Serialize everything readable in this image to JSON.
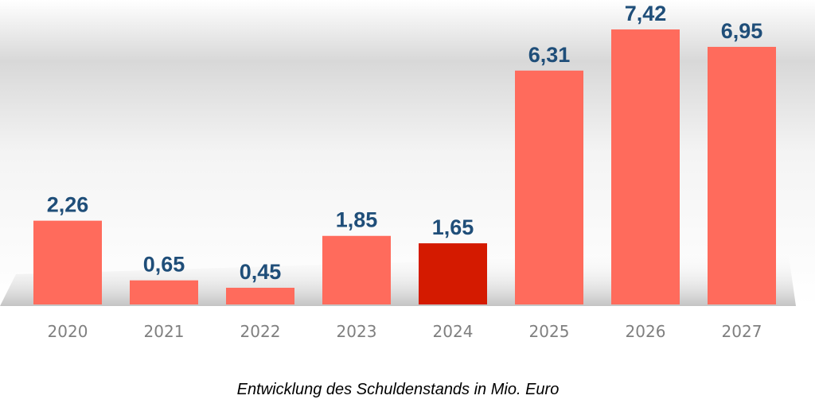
{
  "chart_data": {
    "type": "bar",
    "title": "",
    "caption": "Entwicklung des Schuldenstands in Mio. Euro",
    "xlabel": "",
    "ylabel": "",
    "ylim": [
      0,
      8
    ],
    "grid": false,
    "categories": [
      "2020",
      "2021",
      "2022",
      "2023",
      "2024",
      "2025",
      "2026",
      "2027"
    ],
    "values": [
      2.26,
      0.65,
      0.45,
      1.85,
      1.65,
      6.31,
      7.42,
      6.95
    ],
    "value_labels": [
      "2,26",
      "0,65",
      "0,45",
      "1,85",
      "1,65",
      "6,31",
      "7,42",
      "6,95"
    ],
    "highlight_index": 4,
    "colors": {
      "bar": "#ff6b5c",
      "highlight": "#d41a00",
      "value_label": "#1f4e79",
      "tick_label": "#7f7f7f"
    }
  }
}
